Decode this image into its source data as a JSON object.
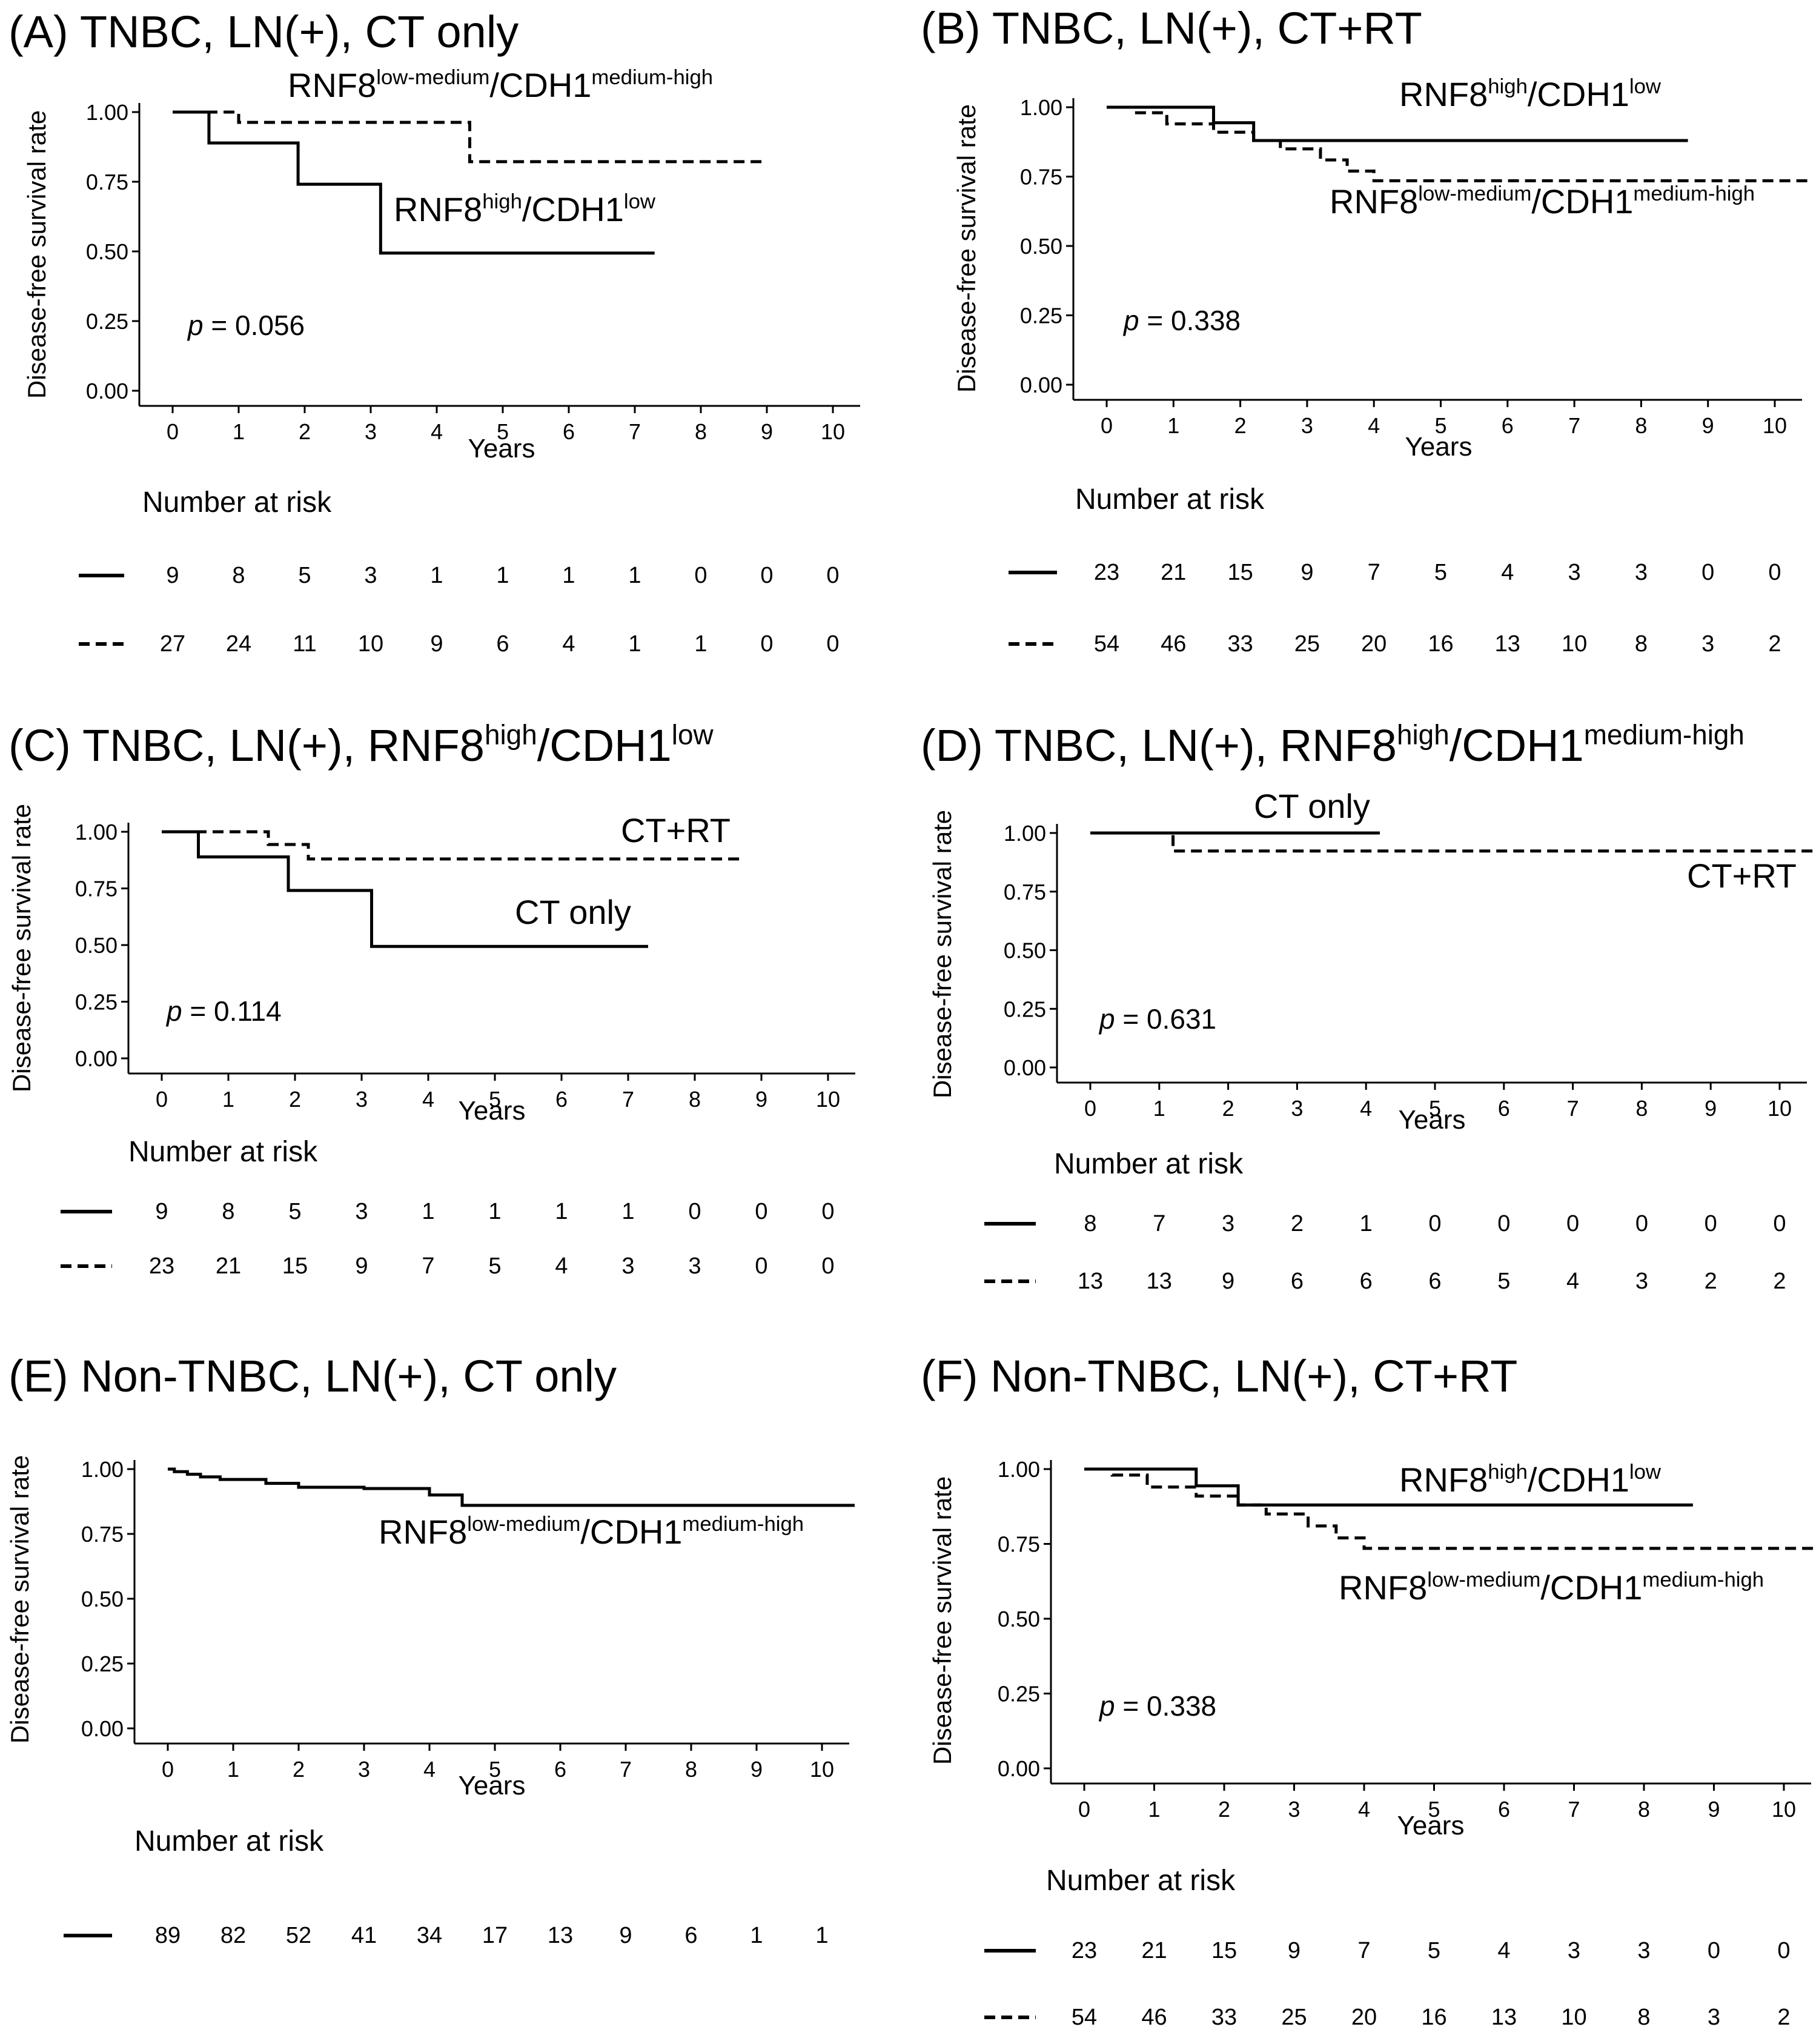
{
  "chart_data": [
    {
      "type": "line",
      "panel_title": "(A) TNBC, LN(+), CT only",
      "ylabel": "Disease-free survival rate",
      "xlabel": "Years",
      "xlim": [
        0,
        10
      ],
      "ylim": [
        0,
        1
      ],
      "x_ticks": [
        "0",
        "1",
        "2",
        "3",
        "4",
        "5",
        "6",
        "7",
        "8",
        "9",
        "10"
      ],
      "y_ticks": [
        "0.00",
        "0.25",
        "0.50",
        "0.75",
        "1.00"
      ],
      "p_label": "p",
      "p_value": "= 0.056",
      "series": [
        {
          "style": "solid",
          "x": [
            0,
            0.55,
            0.55,
            1.9,
            1.9,
            3.15,
            3.15,
            7.3
          ],
          "y": [
            1.0,
            1.0,
            0.889,
            0.889,
            0.741,
            0.741,
            0.494,
            0.494
          ]
        },
        {
          "style": "dashed",
          "x": [
            0,
            1.0,
            1.0,
            4.5,
            4.5,
            9.0
          ],
          "y": [
            1.0,
            1.0,
            0.963,
            0.963,
            0.822,
            0.822
          ]
        }
      ],
      "labels": [
        {
          "parts": [
            "RNF8",
            "low-medium",
            "/CDH1",
            "medium-high"
          ]
        },
        {
          "parts": [
            "RNF8",
            "high",
            "/CDH1",
            "low"
          ]
        }
      ],
      "risk_header": "Number at risk",
      "risk": [
        {
          "style": "solid",
          "values": [
            "9",
            "8",
            "5",
            "3",
            "1",
            "1",
            "1",
            "1",
            "0",
            "0",
            "0"
          ]
        },
        {
          "style": "dashed",
          "values": [
            "27",
            "24",
            "11",
            "10",
            "9",
            "6",
            "4",
            "1",
            "1",
            "0",
            "0"
          ]
        }
      ]
    },
    {
      "type": "line",
      "panel_title": "(B) TNBC, LN(+), CT+RT",
      "ylabel": "Disease-free survival rate",
      "xlabel": "Years",
      "xlim": [
        0,
        10
      ],
      "ylim": [
        0,
        1
      ],
      "x_ticks": [
        "0",
        "1",
        "2",
        "3",
        "4",
        "5",
        "6",
        "7",
        "8",
        "9",
        "10"
      ],
      "y_ticks": [
        "0.00",
        "0.25",
        "0.50",
        "0.75",
        "1.00"
      ],
      "p_label": "p",
      "p_value": "= 0.338",
      "series": [
        {
          "style": "solid",
          "x": [
            0,
            1.6,
            1.6,
            2.2,
            2.2,
            8.7
          ],
          "y": [
            1.0,
            1.0,
            0.944,
            0.944,
            0.88,
            0.88
          ]
        },
        {
          "style": "dashed",
          "x": [
            0,
            0.4,
            0.4,
            0.9,
            0.9,
            1.6,
            1.6,
            2.2,
            2.2,
            2.6,
            2.6,
            3.2,
            3.2,
            3.6,
            3.6,
            4.0,
            4.0,
            10.5
          ],
          "y": [
            1.0,
            1.0,
            0.98,
            0.98,
            0.94,
            0.94,
            0.91,
            0.91,
            0.88,
            0.88,
            0.85,
            0.85,
            0.81,
            0.81,
            0.77,
            0.77,
            0.735,
            0.735
          ]
        }
      ],
      "labels": [
        {
          "parts": [
            "RNF8",
            "high",
            "/CDH1",
            "low"
          ]
        },
        {
          "parts": [
            "RNF8",
            "low-medium",
            "/CDH1",
            "medium-high"
          ]
        }
      ],
      "risk_header": "Number at risk",
      "risk": [
        {
          "style": "solid",
          "values": [
            "23",
            "21",
            "15",
            "9",
            "7",
            "5",
            "4",
            "3",
            "3",
            "0",
            "0"
          ]
        },
        {
          "style": "dashed",
          "values": [
            "54",
            "46",
            "33",
            "25",
            "20",
            "16",
            "13",
            "10",
            "8",
            "3",
            "2"
          ]
        }
      ]
    },
    {
      "type": "line",
      "panel_title": "(C) TNBC, LN(+), RNF8",
      "panel_title_parts": [
        "high",
        "/CDH1",
        "low"
      ],
      "ylabel": "Disease-free survival rate",
      "xlabel": "Years",
      "xlim": [
        0,
        10
      ],
      "ylim": [
        0,
        1
      ],
      "x_ticks": [
        "0",
        "1",
        "2",
        "3",
        "4",
        "5",
        "6",
        "7",
        "8",
        "9",
        "10"
      ],
      "y_ticks": [
        "0.00",
        "0.25",
        "0.50",
        "0.75",
        "1.00"
      ],
      "p_label": "p",
      "p_value": "= 0.114",
      "series": [
        {
          "style": "solid",
          "x": [
            0,
            0.55,
            0.55,
            1.9,
            1.9,
            3.15,
            3.15,
            7.3
          ],
          "y": [
            1.0,
            1.0,
            0.889,
            0.889,
            0.741,
            0.741,
            0.494,
            0.494
          ]
        },
        {
          "style": "dashed",
          "x": [
            0,
            1.6,
            1.6,
            2.2,
            2.2,
            8.7
          ],
          "y": [
            1.0,
            1.0,
            0.944,
            0.944,
            0.88,
            0.88
          ]
        }
      ],
      "labels": [
        {
          "parts": [
            "CT+RT"
          ]
        },
        {
          "parts": [
            "CT only"
          ]
        }
      ],
      "risk_header": "Number at risk",
      "risk": [
        {
          "style": "solid",
          "values": [
            "9",
            "8",
            "5",
            "3",
            "1",
            "1",
            "1",
            "1",
            "0",
            "0",
            "0"
          ]
        },
        {
          "style": "dashed",
          "values": [
            "23",
            "21",
            "15",
            "9",
            "7",
            "5",
            "4",
            "3",
            "3",
            "0",
            "0"
          ]
        }
      ]
    },
    {
      "type": "line",
      "panel_title": "(D) TNBC, LN(+), RNF8",
      "panel_title_parts": [
        "high",
        "/CDH1",
        "medium-high"
      ],
      "ylabel": "Disease-free survival rate",
      "xlabel": "Years",
      "xlim": [
        0,
        10
      ],
      "ylim": [
        0,
        1
      ],
      "x_ticks": [
        "0",
        "1",
        "2",
        "3",
        "4",
        "5",
        "6",
        "7",
        "8",
        "9",
        "10"
      ],
      "y_ticks": [
        "0.00",
        "0.25",
        "0.50",
        "0.75",
        "1.00"
      ],
      "p_label": "p",
      "p_value": "= 0.631",
      "series": [
        {
          "style": "solid",
          "x": [
            0,
            4.2
          ],
          "y": [
            1.0,
            1.0
          ]
        },
        {
          "style": "dashed",
          "x": [
            0,
            1.2,
            1.2,
            10.5
          ],
          "y": [
            1.0,
            1.0,
            0.923,
            0.923
          ]
        }
      ],
      "labels": [
        {
          "parts": [
            "CT only"
          ]
        },
        {
          "parts": [
            "CT+RT"
          ]
        }
      ],
      "risk_header": "Number at risk",
      "risk": [
        {
          "style": "solid",
          "values": [
            "8",
            "7",
            "3",
            "2",
            "1",
            "0",
            "0",
            "0",
            "0",
            "0",
            "0"
          ]
        },
        {
          "style": "dashed",
          "values": [
            "13",
            "13",
            "9",
            "6",
            "6",
            "6",
            "5",
            "4",
            "3",
            "2",
            "2"
          ]
        }
      ]
    },
    {
      "type": "line",
      "panel_title": "(E) Non-TNBC, LN(+), CT only",
      "ylabel": "Disease-free survival rate",
      "xlabel": "Years",
      "xlim": [
        0,
        10
      ],
      "ylim": [
        0,
        1
      ],
      "x_ticks": [
        "0",
        "1",
        "2",
        "3",
        "4",
        "5",
        "6",
        "7",
        "8",
        "9",
        "10"
      ],
      "y_ticks": [
        "0.00",
        "0.25",
        "0.50",
        "0.75",
        "1.00"
      ],
      "series": [
        {
          "style": "solid",
          "x": [
            0,
            0.1,
            0.1,
            0.3,
            0.3,
            0.5,
            0.5,
            0.8,
            0.8,
            1.5,
            1.5,
            2.0,
            2.0,
            3.0,
            3.0,
            4.0,
            4.0,
            4.5,
            4.5,
            10.5
          ],
          "y": [
            1.0,
            1.0,
            0.99,
            0.99,
            0.98,
            0.98,
            0.97,
            0.97,
            0.96,
            0.96,
            0.945,
            0.945,
            0.93,
            0.93,
            0.925,
            0.925,
            0.9,
            0.9,
            0.86,
            0.86
          ]
        }
      ],
      "labels": [
        {
          "parts": [
            "RNF8",
            "low-medium",
            "/CDH1",
            "medium-high"
          ]
        }
      ],
      "risk_header": "Number at risk",
      "risk": [
        {
          "style": "solid",
          "values": [
            "89",
            "82",
            "52",
            "41",
            "34",
            "17",
            "13",
            "9",
            "6",
            "1",
            "1"
          ]
        }
      ]
    },
    {
      "type": "line",
      "panel_title": "(F) Non-TNBC, LN(+), CT+RT",
      "ylabel": "Disease-free survival rate",
      "xlabel": "Years",
      "xlim": [
        0,
        10
      ],
      "ylim": [
        0,
        1
      ],
      "x_ticks": [
        "0",
        "1",
        "2",
        "3",
        "4",
        "5",
        "6",
        "7",
        "8",
        "9",
        "10"
      ],
      "y_ticks": [
        "0.00",
        "0.25",
        "0.50",
        "0.75",
        "1.00"
      ],
      "p_label": "p",
      "p_value": "= 0.338",
      "series": [
        {
          "style": "solid",
          "x": [
            0,
            1.6,
            1.6,
            2.2,
            2.2,
            8.7
          ],
          "y": [
            1.0,
            1.0,
            0.944,
            0.944,
            0.88,
            0.88
          ]
        },
        {
          "style": "dashed",
          "x": [
            0,
            0.4,
            0.4,
            0.9,
            0.9,
            1.6,
            1.6,
            2.2,
            2.2,
            2.6,
            2.6,
            3.2,
            3.2,
            3.6,
            3.6,
            4.0,
            4.0,
            10.5
          ],
          "y": [
            1.0,
            1.0,
            0.98,
            0.98,
            0.94,
            0.94,
            0.91,
            0.91,
            0.88,
            0.88,
            0.85,
            0.85,
            0.81,
            0.81,
            0.77,
            0.77,
            0.735,
            0.735
          ]
        }
      ],
      "labels": [
        {
          "parts": [
            "RNF8",
            "high",
            "/CDH1",
            "low"
          ]
        },
        {
          "parts": [
            "RNF8",
            "low-medium",
            "/CDH1",
            "medium-high"
          ]
        }
      ],
      "risk_header": "Number at risk",
      "risk": [
        {
          "style": "solid",
          "values": [
            "23",
            "21",
            "15",
            "9",
            "7",
            "5",
            "4",
            "3",
            "3",
            "0",
            "0"
          ]
        },
        {
          "style": "dashed",
          "values": [
            "54",
            "46",
            "33",
            "25",
            "20",
            "16",
            "13",
            "10",
            "8",
            "3",
            "2"
          ]
        }
      ]
    }
  ]
}
